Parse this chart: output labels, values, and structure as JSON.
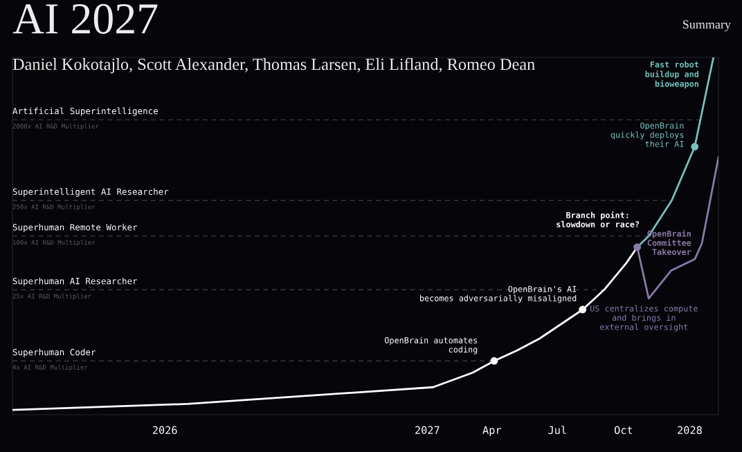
{
  "chart_data": {
    "type": "line",
    "title": "AI 2027",
    "subtitle": "Daniel Kokotajlo, Scott Alexander, Thomas Larsen, Eli Lifland, Romeo Dean",
    "log": true,
    "ylim": [
      1,
      10000
    ],
    "tick_labels": "x",
    "xlim": [
      "2025-06-03",
      "2028-02-10"
    ],
    "xticks": [
      {
        "value": "2026-01-01",
        "label": "2026"
      },
      {
        "value": "2027-01-01",
        "label": "2027"
      },
      {
        "value": "2027-04-01",
        "label": "Apr"
      },
      {
        "value": "2027-07-01",
        "label": "Jul"
      },
      {
        "value": "2027-10-01",
        "label": "Oct"
      },
      {
        "value": "2028-01-01",
        "label": "2028"
      }
    ],
    "series": [
      {
        "color": "#ffffff",
        "x": [
          "2025-06-03",
          "2026-02-02",
          "2027-01-09",
          "2027-03-05",
          "2027-04-04",
          "2027-05-05",
          "2027-06-06",
          "2027-08-05",
          "2027-09-04",
          "2027-10-05",
          "2027-10-20"
        ],
        "values": [
          1.13,
          1.32,
          2.03,
          2.95,
          4,
          5.2,
          7.1,
          15,
          25,
          50,
          75
        ]
      },
      {
        "color": "#74c2bb",
        "x": [
          "2027-10-20",
          "2027-11-05",
          "2027-12-07",
          "2028-01-08",
          "2028-02-03"
        ],
        "values": [
          75,
          100,
          250,
          1000,
          10000
        ]
      },
      {
        "color": "#8a7aa8",
        "x": [
          "2027-10-20",
          "2027-11-05",
          "2027-12-06",
          "2028-01-08",
          "2028-01-18",
          "2028-02-10"
        ],
        "values": [
          75,
          20,
          41,
          55,
          83,
          760
        ]
      },
      {
        "type": "scatter",
        "x": [
          "2027-04-04",
          "2027-08-05",
          "2027-10-20",
          "2028-01-08"
        ],
        "values": [
          4,
          15,
          75,
          1000
        ],
        "colors": [
          "#ffffff",
          "#ffffff",
          "#8a7aa8",
          "#74c2bb"
        ]
      }
    ],
    "ref_lines": [
      {
        "axis": "y",
        "value": 4,
        "label": "Superhuman Coder\n4x AI R&D Multiplier",
        "color": "#3a3a3a",
        "line_style": "dashed"
      },
      {
        "axis": "y",
        "value": 25,
        "label": "Superhuman AI Researcher\n25x AI R&D Multiplier",
        "color": "#3a3a3a",
        "line_style": "dashed"
      },
      {
        "axis": "y",
        "value": 100,
        "label": "Superhuman Remote Worker\n100x AI R&D Multiplier",
        "color": "#3a3a3a",
        "line_style": "dashed"
      },
      {
        "axis": "y",
        "value": 250,
        "label": "Superintelligent AI Researcher\n250x AI R&D Multiplier",
        "color": "#3a3a3a",
        "line_style": "dashed"
      },
      {
        "axis": "y",
        "value": 2000,
        "label": "Artificial Superintelligence\n2000x AI R&D Multiplier",
        "color": "#3a3a3a",
        "line_style": "dashed"
      }
    ],
    "annotations": [
      "Summary",
      {
        "text": "OpenBrain automates\ncoding",
        "x": "2027-04-04",
        "y": 4
      },
      {
        "text": "OpenBrain's AI\nbecomes adversarially misaligned",
        "x": "2027-08-05",
        "y": 15
      },
      {
        "text": "Branch point:\nslowdown or race?",
        "x": "2027-10-20",
        "y": 75
      },
      {
        "text": "OpenBrain\nquickly deploys\ntheir AI",
        "x": "2028-01-08",
        "y": 1000
      },
      {
        "text": "Fast robot\nbuildup and\nbioweapon",
        "x": "2028-02-03",
        "y": 10000
      },
      {
        "text": "OpenBrain\nCommittee\nTakeover",
        "x": "2028-01-18",
        "y": 83
      },
      {
        "text": "US centralizes compute\nand brings in\nexternal oversight",
        "x": "2027-11-05",
        "y": 20
      }
    ]
  }
}
